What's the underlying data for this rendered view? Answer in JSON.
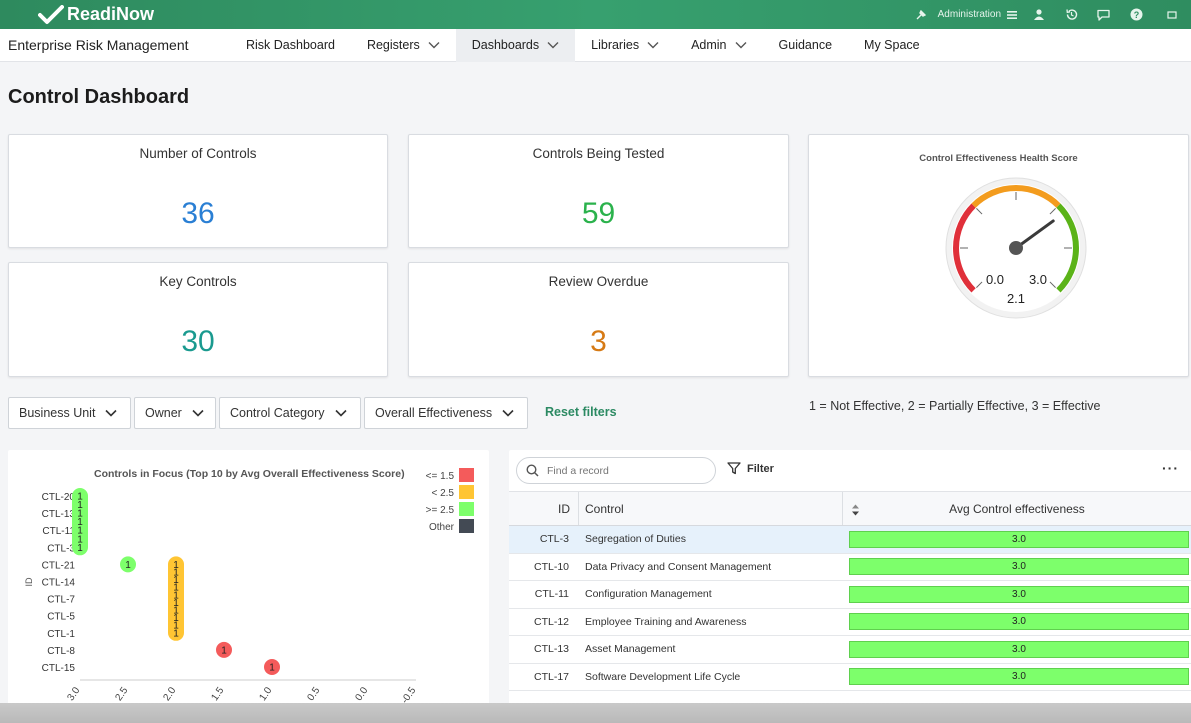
{
  "brand": {
    "name": "ReadiNow"
  },
  "topbar": {
    "admin_label": "Administration"
  },
  "nav": {
    "app_title": "Enterprise Risk Management",
    "items": [
      {
        "label": "Risk Dashboard",
        "dropdown": false,
        "active": false
      },
      {
        "label": "Registers",
        "dropdown": true,
        "active": false
      },
      {
        "label": "Dashboards",
        "dropdown": true,
        "active": true
      },
      {
        "label": "Libraries",
        "dropdown": true,
        "active": false
      },
      {
        "label": "Admin",
        "dropdown": true,
        "active": false
      },
      {
        "label": "Guidance",
        "dropdown": false,
        "active": false
      },
      {
        "label": "My Space",
        "dropdown": false,
        "active": false
      }
    ]
  },
  "page": {
    "title": "Control Dashboard"
  },
  "kpis": [
    {
      "title": "Number of Controls",
      "value": "36",
      "color": "#2a7fd4"
    },
    {
      "title": "Controls Being Tested",
      "value": "59",
      "color": "#2bb24c"
    },
    {
      "title": "Key Controls",
      "value": "30",
      "color": "#1a9a8f"
    },
    {
      "title": "Review Overdue",
      "value": "3",
      "color": "#d67a15"
    }
  ],
  "gauge": {
    "title": "Control Effectiveness Health Score",
    "min_label": "0.0",
    "max_label": "3.0",
    "value_label": "2.1",
    "value": 2.1,
    "min": 0,
    "max": 3
  },
  "filters": {
    "items": [
      "Business Unit",
      "Owner",
      "Control Category",
      "Overall Effectiveness"
    ],
    "reset_label": "Reset filters",
    "legend_note": "1 = Not Effective, 2 = Partially Effective, 3 = Effective"
  },
  "chart_data": {
    "type": "scatter",
    "title": "Controls in Focus (Top 10 by Avg Overall Effectiveness Score)",
    "ylabel": "ID",
    "xlabel": "",
    "categories": [
      "CTL-20",
      "CTL-13",
      "CTL-11",
      "CTL-3",
      "CTL-21",
      "CTL-14",
      "CTL-7",
      "CTL-5",
      "CTL-1",
      "CTL-8",
      "CTL-15"
    ],
    "x_ticks": [
      "3.0",
      "2.5",
      "2.0",
      "1.5",
      "1.0",
      "0.5",
      "0.0",
      "-0.5"
    ],
    "xlim": [
      3.0,
      -0.5
    ],
    "point_label": "1",
    "legend": [
      {
        "label": "<= 1.5",
        "color": "#f45b5b"
      },
      {
        "label": "< 2.5",
        "color": "#ffc533"
      },
      {
        "label": ">= 2.5",
        "color": "#7dff6b"
      },
      {
        "label": "Other",
        "color": "#434a54"
      }
    ],
    "legend_position": "top-right",
    "points": [
      {
        "id": "CTL-20",
        "x": 3.0,
        "band": 2
      },
      {
        "id": "CTL-13",
        "x": 3.0,
        "band": 2
      },
      {
        "id": "CTL-11",
        "x": 3.0,
        "band": 2
      },
      {
        "id": "CTL-3",
        "x": 3.0,
        "band": 2
      },
      {
        "id": "CTL-21",
        "x": 2.5,
        "band": 2
      },
      {
        "id": "CTL-21",
        "x": 2.0,
        "band": 1
      },
      {
        "id": "CTL-14",
        "x": 2.0,
        "band": 1
      },
      {
        "id": "CTL-7",
        "x": 2.0,
        "band": 1
      },
      {
        "id": "CTL-5",
        "x": 2.0,
        "band": 1
      },
      {
        "id": "CTL-1",
        "x": 2.0,
        "band": 1
      },
      {
        "id": "CTL-8",
        "x": 1.5,
        "band": 0
      },
      {
        "id": "CTL-15",
        "x": 1.0,
        "band": 0
      }
    ]
  },
  "table": {
    "search_placeholder": "Find a record",
    "filter_label": "Filter",
    "more_label": "···",
    "columns": {
      "id": "ID",
      "control": "Control",
      "effectiveness": "Avg Control effectiveness"
    },
    "rows": [
      {
        "id": "CTL-3",
        "control": "Segregation of Duties",
        "value": "3.0",
        "selected": true
      },
      {
        "id": "CTL-10",
        "control": "Data Privacy and Consent Management",
        "value": "3.0"
      },
      {
        "id": "CTL-11",
        "control": "Configuration Management",
        "value": "3.0"
      },
      {
        "id": "CTL-12",
        "control": "Employee Training and Awareness",
        "value": "3.0"
      },
      {
        "id": "CTL-13",
        "control": "Asset Management",
        "value": "3.0"
      },
      {
        "id": "CTL-17",
        "control": "Software Development Life Cycle",
        "value": "3.0"
      }
    ]
  }
}
